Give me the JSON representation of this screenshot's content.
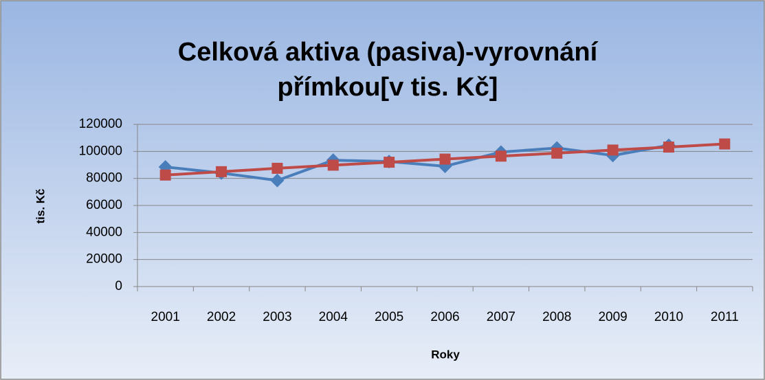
{
  "chart_data": {
    "type": "line",
    "title": "Celková aktiva (pasiva)-vyrovnání",
    "subtitle": "přímkou[v tis. Kč]",
    "x_label": "Roky",
    "y_label": "tis. Kč",
    "categories": [
      "2001",
      "2002",
      "2003",
      "2004",
      "2005",
      "2006",
      "2007",
      "2008",
      "2009",
      "2010",
      "2011"
    ],
    "series": [
      {
        "color": "#4a7ebb",
        "marker": "diamond",
        "values": [
          88500,
          84000,
          78500,
          93500,
          92500,
          89000,
          99500,
          102500,
          97000,
          104500,
          null
        ]
      },
      {
        "color": "#be4b48",
        "marker": "square",
        "values": [
          82500,
          85000,
          87500,
          89800,
          92000,
          94300,
          96500,
          98700,
          101000,
          103200,
          105500
        ]
      }
    ],
    "ylim": [
      0,
      120000
    ],
    "yticks": [
      0,
      20000,
      40000,
      60000,
      80000,
      100000,
      120000
    ],
    "grid": true
  }
}
